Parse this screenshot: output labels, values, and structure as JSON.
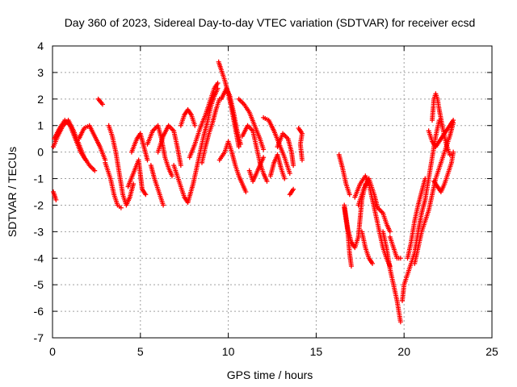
{
  "chart_data": {
    "type": "scatter",
    "title": "Day 360 of 2023, Sidereal Day-to-day VTEC variation (SDTVAR) for receiver ecsd",
    "xlabel": "GPS time / hours",
    "ylabel": "SDTVAR / TECUs",
    "xlim": [
      0,
      25
    ],
    "ylim": [
      -7,
      4
    ],
    "xticks": [
      0,
      5,
      10,
      15,
      20,
      25
    ],
    "yticks": [
      4,
      3,
      2,
      1,
      0,
      -1,
      -2,
      -3,
      -4,
      -5,
      -6,
      -7
    ],
    "grid": true,
    "marker": "+",
    "series": [
      {
        "name": "SDTVAR",
        "color": "#ff0000",
        "tracks": [
          [
            [
              0.05,
              -1.5
            ],
            [
              0.2,
              -1.8
            ]
          ],
          [
            [
              0.05,
              0.2
            ],
            [
              0.3,
              0.6
            ],
            [
              0.6,
              1.0
            ],
            [
              0.9,
              1.2
            ],
            [
              1.2,
              0.8
            ],
            [
              1.5,
              0.3
            ],
            [
              1.8,
              -0.2
            ],
            [
              2.1,
              -0.5
            ],
            [
              2.4,
              -0.7
            ]
          ],
          [
            [
              0.1,
              0.5
            ],
            [
              0.4,
              0.9
            ],
            [
              0.7,
              1.2
            ],
            [
              1.0,
              1.0
            ],
            [
              1.3,
              0.5
            ],
            [
              1.6,
              0.0
            ],
            [
              1.9,
              -0.3
            ]
          ],
          [
            [
              1.5,
              0.5
            ],
            [
              1.8,
              0.9
            ],
            [
              2.1,
              1.0
            ],
            [
              2.4,
              0.6
            ],
            [
              2.7,
              0.2
            ],
            [
              3.0,
              -0.3
            ]
          ],
          [
            [
              2.6,
              2.0
            ],
            [
              2.85,
              1.8
            ]
          ],
          [
            [
              3.2,
              1.0
            ],
            [
              3.4,
              0.6
            ],
            [
              3.6,
              0.0
            ],
            [
              3.8,
              -0.8
            ],
            [
              4.0,
              -1.6
            ],
            [
              4.2,
              -2.0
            ],
            [
              4.4,
              -1.7
            ],
            [
              4.6,
              -1.2
            ]
          ],
          [
            [
              3.0,
              -0.4
            ],
            [
              3.3,
              -1.0
            ],
            [
              3.5,
              -1.6
            ],
            [
              3.7,
              -2.0
            ],
            [
              3.9,
              -2.1
            ]
          ],
          [
            [
              4.3,
              -1.3
            ],
            [
              4.6,
              -0.8
            ],
            [
              4.9,
              -0.3
            ],
            [
              5.1,
              -1.4
            ],
            [
              5.3,
              -1.6
            ]
          ],
          [
            [
              4.5,
              0.0
            ],
            [
              4.8,
              0.5
            ],
            [
              5.0,
              0.7
            ],
            [
              5.2,
              0.2
            ],
            [
              5.4,
              -0.3
            ]
          ],
          [
            [
              5.4,
              0.3
            ],
            [
              5.7,
              0.8
            ],
            [
              6.0,
              1.0
            ],
            [
              6.2,
              0.5
            ],
            [
              6.4,
              -0.2
            ],
            [
              6.6,
              -0.6
            ],
            [
              6.8,
              -0.9
            ]
          ],
          [
            [
              5.6,
              -0.5
            ],
            [
              5.8,
              -1.0
            ],
            [
              6.0,
              -1.4
            ],
            [
              6.2,
              -1.8
            ],
            [
              6.3,
              -2.0
            ]
          ],
          [
            [
              6.0,
              0.0
            ],
            [
              6.3,
              0.6
            ],
            [
              6.6,
              1.0
            ],
            [
              6.9,
              0.8
            ],
            [
              7.1,
              0.2
            ],
            [
              7.3,
              -0.5
            ]
          ],
          [
            [
              7.3,
              1.0
            ],
            [
              7.5,
              1.4
            ],
            [
              7.7,
              1.6
            ],
            [
              7.9,
              1.4
            ],
            [
              8.1,
              1.0
            ]
          ],
          [
            [
              6.9,
              -0.5
            ],
            [
              7.1,
              -0.9
            ],
            [
              7.3,
              -1.3
            ],
            [
              7.5,
              -1.7
            ],
            [
              7.7,
              -1.9
            ],
            [
              8.0,
              -1.2
            ],
            [
              8.2,
              -0.6
            ],
            [
              8.4,
              0.0
            ],
            [
              8.6,
              0.6
            ],
            [
              8.8,
              1.1
            ],
            [
              9.0,
              1.7
            ],
            [
              9.2,
              2.1
            ],
            [
              9.4,
              2.4
            ]
          ],
          [
            [
              7.8,
              -0.2
            ],
            [
              8.1,
              0.3
            ],
            [
              8.4,
              0.9
            ],
            [
              8.7,
              1.4
            ],
            [
              9.0,
              2.0
            ],
            [
              9.2,
              2.4
            ],
            [
              9.4,
              2.6
            ]
          ],
          [
            [
              8.5,
              -0.4
            ],
            [
              8.7,
              0.2
            ],
            [
              8.9,
              0.7
            ],
            [
              9.1,
              1.1
            ],
            [
              9.3,
              1.6
            ],
            [
              9.5,
              2.0
            ]
          ],
          [
            [
              9.45,
              3.4
            ],
            [
              9.6,
              3.1
            ],
            [
              9.8,
              2.7
            ],
            [
              10.0,
              2.2
            ],
            [
              10.2,
              1.6
            ],
            [
              10.4,
              0.9
            ],
            [
              10.6,
              0.2
            ]
          ],
          [
            [
              9.6,
              2.0
            ],
            [
              9.9,
              2.4
            ],
            [
              10.1,
              2.1
            ],
            [
              10.3,
              1.5
            ],
            [
              10.5,
              0.8
            ],
            [
              10.7,
              0.3
            ]
          ],
          [
            [
              9.5,
              -0.3
            ],
            [
              9.8,
              0.0
            ],
            [
              10.0,
              0.4
            ],
            [
              10.2,
              0.0
            ],
            [
              10.4,
              -0.5
            ],
            [
              10.6,
              -0.9
            ],
            [
              10.8,
              -1.2
            ],
            [
              11.0,
              -1.5
            ]
          ],
          [
            [
              10.6,
              2.0
            ],
            [
              10.9,
              1.8
            ],
            [
              11.2,
              1.5
            ],
            [
              11.5,
              1.0
            ],
            [
              11.8,
              0.5
            ],
            [
              12.0,
              0.1
            ]
          ],
          [
            [
              10.8,
              0.6
            ],
            [
              11.1,
              1.0
            ],
            [
              11.4,
              0.8
            ],
            [
              11.6,
              0.2
            ],
            [
              11.8,
              -0.4
            ],
            [
              12.0,
              -0.8
            ],
            [
              12.2,
              -1.1
            ]
          ],
          [
            [
              11.2,
              -0.7
            ],
            [
              11.4,
              -1.1
            ],
            [
              11.6,
              -0.8
            ],
            [
              11.8,
              -0.5
            ],
            [
              12.0,
              -0.2
            ]
          ],
          [
            [
              12.0,
              1.3
            ],
            [
              12.3,
              1.2
            ],
            [
              12.6,
              0.8
            ],
            [
              12.9,
              0.3
            ],
            [
              13.2,
              -0.2
            ],
            [
              13.5,
              -0.8
            ]
          ],
          [
            [
              12.4,
              -0.9
            ],
            [
              12.6,
              -0.4
            ],
            [
              12.8,
              -0.1
            ],
            [
              13.0,
              -0.6
            ],
            [
              13.2,
              -1.0
            ]
          ],
          [
            [
              12.8,
              0.2
            ],
            [
              13.1,
              0.7
            ],
            [
              13.4,
              0.5
            ],
            [
              13.6,
              0.0
            ],
            [
              13.7,
              -0.5
            ]
          ],
          [
            [
              13.5,
              -1.6
            ],
            [
              13.7,
              -1.4
            ]
          ],
          [
            [
              14.0,
              0.9
            ],
            [
              14.2,
              0.7
            ],
            [
              14.1,
              0.3
            ],
            [
              14.2,
              -0.3
            ]
          ],
          [
            [
              16.3,
              -0.1
            ],
            [
              16.5,
              -0.6
            ],
            [
              16.7,
              -1.2
            ],
            [
              16.9,
              -1.6
            ]
          ],
          [
            [
              16.6,
              -2.0
            ],
            [
              16.8,
              -2.9
            ],
            [
              17.0,
              -3.4
            ],
            [
              17.2,
              -3.6
            ],
            [
              17.4,
              -3.2
            ],
            [
              17.5,
              -2.5
            ],
            [
              17.6,
              -1.8
            ],
            [
              17.8,
              -1.2
            ]
          ],
          [
            [
              16.6,
              -2.1
            ],
            [
              16.8,
              -3.0
            ],
            [
              16.9,
              -3.8
            ],
            [
              17.0,
              -4.3
            ]
          ],
          [
            [
              17.2,
              -1.7
            ],
            [
              17.5,
              -1.2
            ],
            [
              17.8,
              -0.9
            ],
            [
              18.0,
              -1.2
            ],
            [
              18.2,
              -1.8
            ],
            [
              18.4,
              -2.4
            ],
            [
              18.6,
              -3.0
            ],
            [
              18.8,
              -3.6
            ],
            [
              19.0,
              -4.0
            ],
            [
              19.2,
              -4.3
            ]
          ],
          [
            [
              17.4,
              -2.0
            ],
            [
              17.7,
              -1.4
            ],
            [
              18.0,
              -1.0
            ],
            [
              18.3,
              -1.6
            ],
            [
              18.5,
              -2.1
            ],
            [
              18.8,
              -2.3
            ],
            [
              19.0,
              -2.7
            ],
            [
              19.2,
              -3.0
            ]
          ],
          [
            [
              17.6,
              -3.0
            ],
            [
              17.8,
              -3.6
            ],
            [
              18.0,
              -4.0
            ],
            [
              18.2,
              -4.2
            ]
          ],
          [
            [
              18.8,
              -3.0
            ],
            [
              19.0,
              -3.6
            ],
            [
              19.2,
              -4.4
            ],
            [
              19.4,
              -5.0
            ],
            [
              19.6,
              -5.6
            ],
            [
              19.75,
              -6.2
            ],
            [
              19.8,
              -6.4
            ]
          ],
          [
            [
              19.2,
              -3.2
            ],
            [
              19.4,
              -3.6
            ],
            [
              19.6,
              -4.0
            ],
            [
              19.8,
              -4.0
            ]
          ],
          [
            [
              19.9,
              -5.6
            ],
            [
              20.0,
              -5.0
            ],
            [
              20.2,
              -4.6
            ],
            [
              20.4,
              -4.2
            ],
            [
              20.6,
              -3.8
            ],
            [
              20.8,
              -3.0
            ],
            [
              21.0,
              -2.3
            ],
            [
              21.2,
              -1.8
            ],
            [
              21.4,
              -1.0
            ],
            [
              21.6,
              -0.2
            ],
            [
              21.8,
              0.6
            ],
            [
              22.0,
              1.2
            ]
          ],
          [
            [
              20.2,
              -4.0
            ],
            [
              20.4,
              -3.4
            ],
            [
              20.6,
              -2.6
            ],
            [
              20.8,
              -2.0
            ],
            [
              21.0,
              -1.5
            ],
            [
              21.2,
              -1.0
            ]
          ],
          [
            [
              20.6,
              -4.2
            ],
            [
              20.8,
              -3.6
            ],
            [
              21.0,
              -3.0
            ],
            [
              21.2,
              -2.6
            ],
            [
              21.4,
              -2.2
            ],
            [
              21.6,
              -1.6
            ],
            [
              21.8,
              -1.0
            ],
            [
              22.0,
              -0.6
            ],
            [
              22.2,
              -0.2
            ],
            [
              22.4,
              0.2
            ],
            [
              22.6,
              0.6
            ],
            [
              22.8,
              1.1
            ]
          ],
          [
            [
              21.4,
              0.8
            ],
            [
              21.6,
              0.4
            ],
            [
              21.8,
              0.2
            ],
            [
              22.0,
              0.4
            ],
            [
              22.2,
              0.6
            ],
            [
              22.4,
              0.8
            ],
            [
              22.6,
              1.0
            ],
            [
              22.8,
              1.2
            ]
          ],
          [
            [
              21.6,
              1.2
            ],
            [
              21.7,
              2.0
            ],
            [
              21.8,
              2.2
            ],
            [
              21.9,
              2.0
            ],
            [
              22.0,
              1.6
            ],
            [
              22.2,
              0.9
            ],
            [
              22.4,
              0.3
            ],
            [
              22.6,
              -0.1
            ]
          ],
          [
            [
              21.7,
              -1.1
            ],
            [
              21.9,
              -1.3
            ],
            [
              22.1,
              -1.5
            ],
            [
              22.3,
              -1.2
            ],
            [
              22.5,
              -0.8
            ],
            [
              22.7,
              -0.4
            ],
            [
              22.8,
              0.0
            ]
          ]
        ]
      }
    ]
  }
}
